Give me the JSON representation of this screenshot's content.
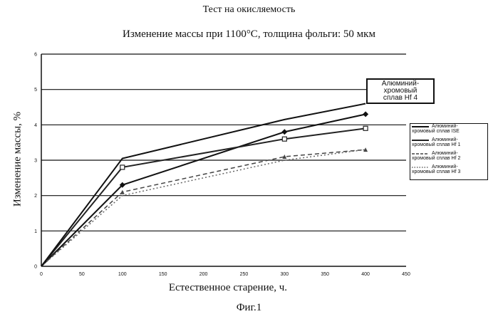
{
  "page_title": "Тест на окисляемость",
  "figure_label": "Фиг.1",
  "chart_data": {
    "type": "line",
    "title": "Изменение массы при 1100°С, толщина фольги: 50 мкм",
    "xlabel": "Естественное старение, ч.",
    "ylabel": "Изменение массы, %",
    "xlim": [
      0,
      450
    ],
    "ylim": [
      0,
      6
    ],
    "x_ticks": [
      0,
      50,
      100,
      150,
      200,
      250,
      300,
      350,
      400,
      450
    ],
    "y_ticks": [
      0,
      1,
      2,
      3,
      4,
      5,
      6
    ],
    "grid": "horizontal",
    "legend_position": "right",
    "series": [
      {
        "name": "Алюминий-хромовый сплав ISE",
        "x": [
          0,
          100,
          300,
          400
        ],
        "values": [
          0,
          2.3,
          3.8,
          4.3
        ],
        "color": "#111111",
        "marker": "diamond",
        "style": "solid",
        "width": 2
      },
      {
        "name": "Алюминий-хромовый сплав Hf 1",
        "x": [
          0,
          100,
          300,
          400
        ],
        "values": [
          0,
          2.8,
          3.6,
          3.9
        ],
        "color": "#222222",
        "marker": "square",
        "style": "solid",
        "width": 2
      },
      {
        "name": "Алюминий-хромовый сплав Hf 2",
        "x": [
          0,
          100,
          300,
          400
        ],
        "values": [
          0,
          2.1,
          3.1,
          3.3
        ],
        "color": "#444444",
        "marker": "triangle",
        "style": "dashed",
        "width": 1.5
      },
      {
        "name": "Алюминий-хромовый сплав Hf 3",
        "x": [
          0,
          100,
          300,
          400
        ],
        "values": [
          0,
          2.0,
          3.0,
          3.3
        ],
        "color": "#666666",
        "marker": "none",
        "style": "dotted",
        "width": 1.5
      },
      {
        "name": "Алюминий-хромовый сплав Hf 4",
        "x": [
          0,
          100,
          300,
          400
        ],
        "values": [
          0,
          3.05,
          4.15,
          4.6
        ],
        "color": "#111111",
        "marker": "none",
        "style": "solid",
        "width": 2
      }
    ],
    "annotation": {
      "lines": [
        "Алюминий-",
        "хромовый",
        "сплав Hf 4"
      ]
    },
    "legend": [
      {
        "lines": [
          "Алюминий-",
          "хромовый сплав ISE"
        ]
      },
      {
        "lines": [
          "Алюминий-",
          "хромовый сплав Hf 1"
        ]
      },
      {
        "lines": [
          "Алюминий-",
          "хромовый сплав Hf 2"
        ]
      },
      {
        "lines": [
          "Алюминий-",
          "хромовый сплав Hf 3"
        ]
      }
    ]
  }
}
